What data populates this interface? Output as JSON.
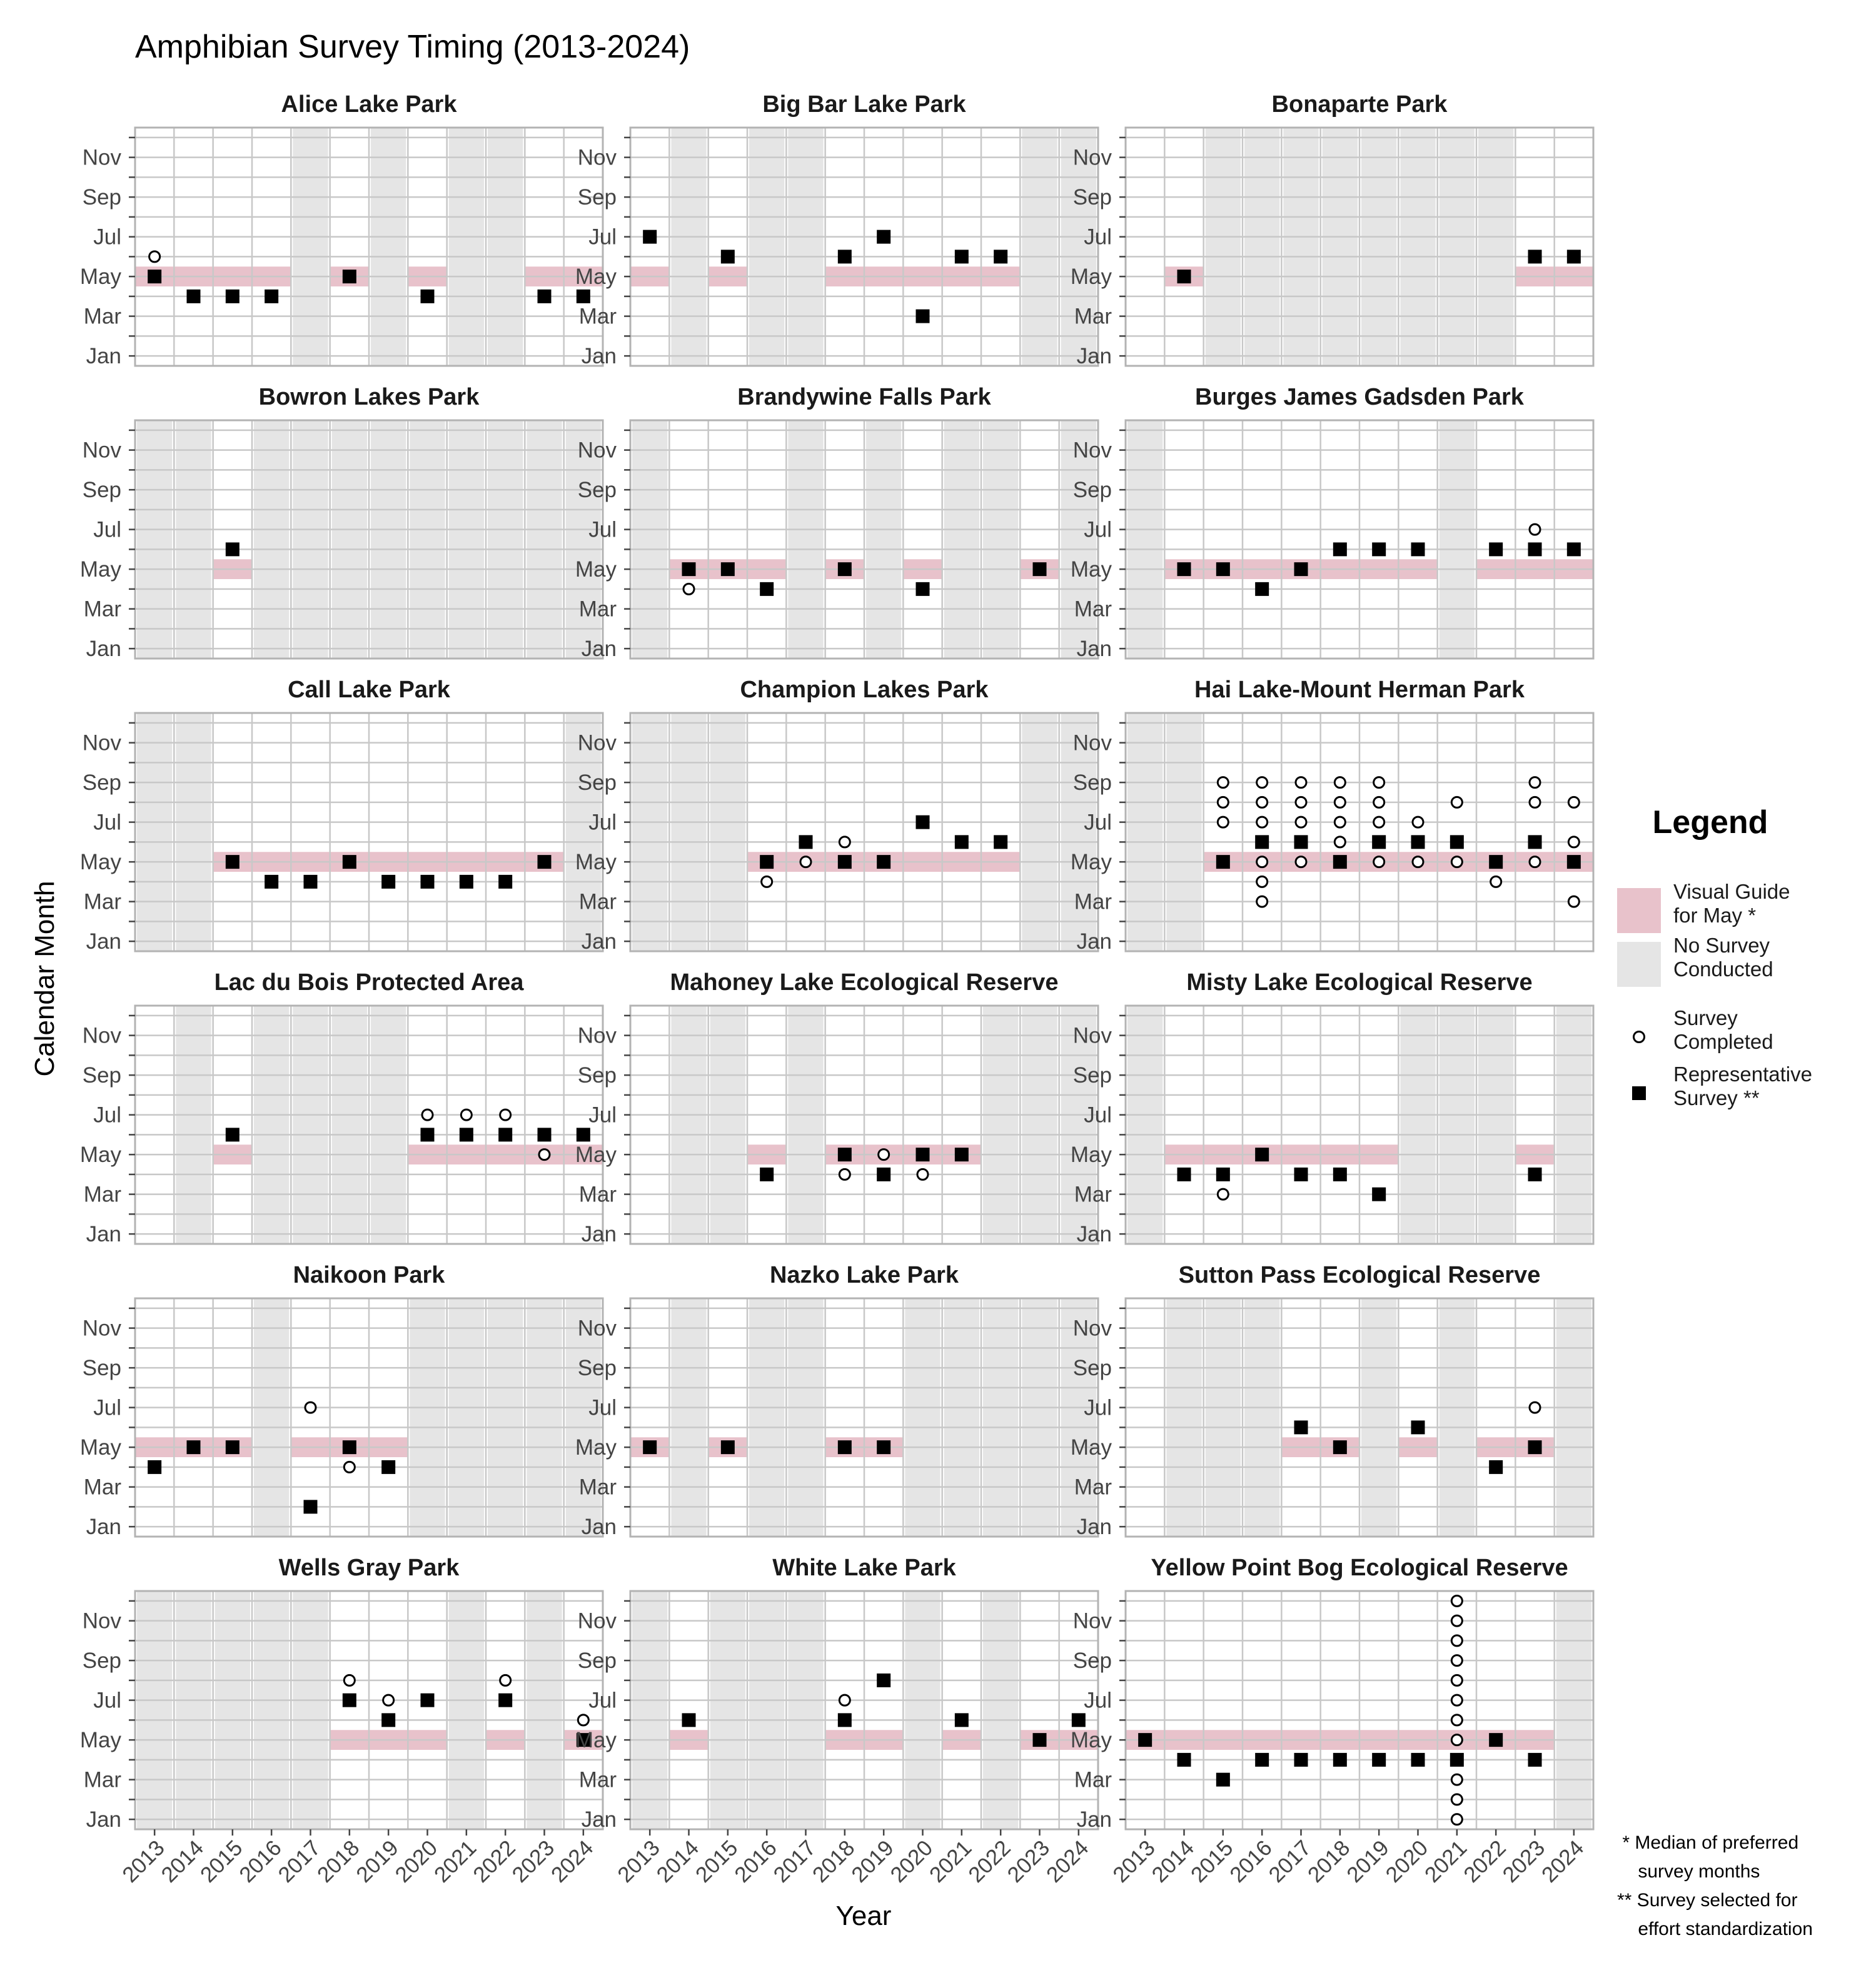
{
  "colors": {
    "may_band": "#e8c2cb",
    "no_survey": "#e5e5e5",
    "grid": "#c8c8c8",
    "panel_border": "#b3b3b3",
    "marker": "#000000"
  },
  "labels": {
    "notes": [
      " * Median of preferred",
      "    survey months",
      "** Survey selected for",
      "    effort standardization"
    ]
  },
  "chart_data": {
    "type": "scatter",
    "title": "Amphibian Survey Timing (2013-2024)",
    "xlabel": "Year",
    "ylabel": "Calendar Month",
    "years": [
      2013,
      2014,
      2015,
      2016,
      2017,
      2018,
      2019,
      2020,
      2021,
      2022,
      2023,
      2024
    ],
    "y_range": [
      1,
      12
    ],
    "month_ticks": [
      "Jan",
      "Mar",
      "May",
      "Jul",
      "Sep",
      "Nov"
    ],
    "grid": true,
    "legend": {
      "title": "Legend",
      "position": "right",
      "items": [
        {
          "key": "band",
          "label": [
            "Visual Guide",
            "for May *"
          ]
        },
        {
          "key": "nosurvey",
          "label": [
            "No Survey",
            "Conducted"
          ]
        },
        {
          "key": "completed",
          "label": [
            "Survey",
            "Completed"
          ]
        },
        {
          "key": "representative",
          "label": [
            "Representative",
            "Survey **"
          ]
        }
      ]
    },
    "panels": [
      {
        "name": "Alice Lake Park",
        "may_band_years": [
          2013,
          2014,
          2015,
          2016,
          2018,
          2020,
          2023,
          2024
        ],
        "no_survey_years": [
          2017,
          2019,
          2021,
          2022
        ],
        "representative": [
          [
            2013,
            5
          ],
          [
            2014,
            4
          ],
          [
            2015,
            4
          ],
          [
            2016,
            4
          ],
          [
            2018,
            5
          ],
          [
            2020,
            4
          ],
          [
            2023,
            4
          ],
          [
            2024,
            4
          ]
        ],
        "completed": [
          [
            2013,
            6
          ]
        ]
      },
      {
        "name": "Big Bar Lake Park",
        "may_band_years": [
          2013,
          2015,
          2018,
          2019,
          2020,
          2021,
          2022
        ],
        "no_survey_years": [
          2014,
          2016,
          2017,
          2023,
          2024
        ],
        "representative": [
          [
            2013,
            7
          ],
          [
            2015,
            6
          ],
          [
            2018,
            6
          ],
          [
            2019,
            7
          ],
          [
            2020,
            3
          ],
          [
            2021,
            6
          ],
          [
            2022,
            6
          ]
        ],
        "completed": []
      },
      {
        "name": "Bonaparte Park",
        "may_band_years": [
          2014,
          2023,
          2024
        ],
        "no_survey_years": [
          2015,
          2016,
          2017,
          2018,
          2019,
          2020,
          2021,
          2022
        ],
        "representative": [
          [
            2014,
            5
          ],
          [
            2023,
            6
          ],
          [
            2024,
            6
          ]
        ],
        "completed": []
      },
      {
        "name": "Bowron Lakes Park",
        "may_band_years": [
          2015
        ],
        "no_survey_years": [
          2013,
          2014,
          2016,
          2017,
          2018,
          2019,
          2020,
          2021,
          2022,
          2023,
          2024
        ],
        "representative": [
          [
            2015,
            6
          ]
        ],
        "completed": []
      },
      {
        "name": "Brandywine Falls Park",
        "may_band_years": [
          2014,
          2015,
          2016,
          2018,
          2020,
          2023
        ],
        "no_survey_years": [
          2013,
          2017,
          2019,
          2021,
          2022,
          2024
        ],
        "representative": [
          [
            2014,
            5
          ],
          [
            2015,
            5
          ],
          [
            2016,
            4
          ],
          [
            2018,
            5
          ],
          [
            2020,
            4
          ],
          [
            2023,
            5
          ]
        ],
        "completed": [
          [
            2014,
            4
          ]
        ]
      },
      {
        "name": "Burges James Gadsden Park",
        "may_band_years": [
          2014,
          2015,
          2016,
          2017,
          2018,
          2019,
          2020,
          2022,
          2023,
          2024
        ],
        "no_survey_years": [
          2013,
          2021
        ],
        "representative": [
          [
            2014,
            5
          ],
          [
            2015,
            5
          ],
          [
            2016,
            4
          ],
          [
            2017,
            5
          ],
          [
            2018,
            6
          ],
          [
            2019,
            6
          ],
          [
            2020,
            6
          ],
          [
            2022,
            6
          ],
          [
            2023,
            6
          ],
          [
            2024,
            6
          ]
        ],
        "completed": [
          [
            2023,
            7
          ]
        ]
      },
      {
        "name": "Call Lake Park",
        "may_band_years": [
          2015,
          2016,
          2017,
          2018,
          2019,
          2020,
          2021,
          2022,
          2023
        ],
        "no_survey_years": [
          2013,
          2014,
          2024
        ],
        "representative": [
          [
            2015,
            5
          ],
          [
            2016,
            4
          ],
          [
            2017,
            4
          ],
          [
            2018,
            5
          ],
          [
            2019,
            4
          ],
          [
            2020,
            4
          ],
          [
            2021,
            4
          ],
          [
            2022,
            4
          ],
          [
            2023,
            5
          ]
        ],
        "completed": []
      },
      {
        "name": "Champion Lakes Park",
        "may_band_years": [
          2016,
          2017,
          2018,
          2019,
          2020,
          2021,
          2022
        ],
        "no_survey_years": [
          2013,
          2014,
          2015,
          2023,
          2024
        ],
        "representative": [
          [
            2016,
            5
          ],
          [
            2017,
            6
          ],
          [
            2018,
            5
          ],
          [
            2019,
            5
          ],
          [
            2020,
            7
          ],
          [
            2021,
            6
          ],
          [
            2022,
            6
          ]
        ],
        "completed": [
          [
            2016,
            4
          ],
          [
            2017,
            5
          ],
          [
            2018,
            6
          ]
        ]
      },
      {
        "name": "Hai Lake-Mount Herman Park",
        "may_band_years": [
          2015,
          2016,
          2017,
          2018,
          2019,
          2020,
          2021,
          2022,
          2023,
          2024
        ],
        "no_survey_years": [
          2013,
          2014
        ],
        "representative": [
          [
            2015,
            5
          ],
          [
            2016,
            6
          ],
          [
            2017,
            6
          ],
          [
            2018,
            5
          ],
          [
            2019,
            6
          ],
          [
            2020,
            6
          ],
          [
            2021,
            6
          ],
          [
            2022,
            5
          ],
          [
            2023,
            6
          ],
          [
            2024,
            5
          ]
        ],
        "completed": [
          [
            2015,
            7
          ],
          [
            2015,
            8
          ],
          [
            2015,
            9
          ],
          [
            2016,
            3
          ],
          [
            2016,
            4
          ],
          [
            2016,
            5
          ],
          [
            2016,
            7
          ],
          [
            2016,
            8
          ],
          [
            2016,
            9
          ],
          [
            2017,
            5
          ],
          [
            2017,
            7
          ],
          [
            2017,
            8
          ],
          [
            2017,
            9
          ],
          [
            2018,
            6
          ],
          [
            2018,
            7
          ],
          [
            2018,
            8
          ],
          [
            2018,
            9
          ],
          [
            2019,
            5
          ],
          [
            2019,
            7
          ],
          [
            2019,
            8
          ],
          [
            2019,
            9
          ],
          [
            2020,
            5
          ],
          [
            2020,
            7
          ],
          [
            2021,
            5
          ],
          [
            2021,
            8
          ],
          [
            2022,
            4
          ],
          [
            2023,
            5
          ],
          [
            2023,
            8
          ],
          [
            2023,
            9
          ],
          [
            2024,
            3
          ],
          [
            2024,
            6
          ],
          [
            2024,
            8
          ]
        ]
      },
      {
        "name": "Lac du Bois Protected Area",
        "may_band_years": [
          2015,
          2020,
          2021,
          2022,
          2023,
          2024
        ],
        "no_survey_years": [
          2014,
          2016,
          2017,
          2018,
          2019
        ],
        "representative": [
          [
            2015,
            6
          ],
          [
            2020,
            6
          ],
          [
            2021,
            6
          ],
          [
            2022,
            6
          ],
          [
            2023,
            6
          ],
          [
            2024,
            6
          ]
        ],
        "completed": [
          [
            2020,
            7
          ],
          [
            2021,
            7
          ],
          [
            2022,
            7
          ],
          [
            2023,
            5
          ]
        ]
      },
      {
        "name": "Mahoney Lake Ecological Reserve",
        "may_band_years": [
          2016,
          2018,
          2019,
          2020,
          2021
        ],
        "no_survey_years": [
          2014,
          2015,
          2017,
          2022,
          2023,
          2024
        ],
        "representative": [
          [
            2016,
            4
          ],
          [
            2018,
            5
          ],
          [
            2019,
            4
          ],
          [
            2020,
            5
          ],
          [
            2021,
            5
          ]
        ],
        "completed": [
          [
            2018,
            4
          ],
          [
            2019,
            5
          ],
          [
            2020,
            4
          ]
        ]
      },
      {
        "name": "Misty Lake Ecological Reserve",
        "may_band_years": [
          2014,
          2015,
          2016,
          2017,
          2018,
          2019,
          2023
        ],
        "no_survey_years": [
          2013,
          2020,
          2021,
          2022,
          2024
        ],
        "representative": [
          [
            2014,
            4
          ],
          [
            2015,
            4
          ],
          [
            2016,
            5
          ],
          [
            2017,
            4
          ],
          [
            2018,
            4
          ],
          [
            2019,
            3
          ],
          [
            2023,
            4
          ]
        ],
        "completed": [
          [
            2015,
            3
          ]
        ]
      },
      {
        "name": "Naikoon Park",
        "may_band_years": [
          2013,
          2014,
          2015,
          2017,
          2018,
          2019
        ],
        "no_survey_years": [
          2016,
          2020,
          2021,
          2022,
          2023,
          2024
        ],
        "representative": [
          [
            2013,
            4
          ],
          [
            2014,
            5
          ],
          [
            2015,
            5
          ],
          [
            2017,
            2
          ],
          [
            2018,
            5
          ],
          [
            2019,
            4
          ]
        ],
        "completed": [
          [
            2017,
            7
          ],
          [
            2018,
            4
          ]
        ]
      },
      {
        "name": "Nazko Lake Park",
        "may_band_years": [
          2013,
          2015,
          2018,
          2019
        ],
        "no_survey_years": [
          2014,
          2016,
          2017,
          2020,
          2021,
          2022,
          2023,
          2024
        ],
        "representative": [
          [
            2013,
            5
          ],
          [
            2015,
            5
          ],
          [
            2018,
            5
          ],
          [
            2019,
            5
          ]
        ],
        "completed": []
      },
      {
        "name": "Sutton Pass Ecological Reserve",
        "may_band_years": [
          2017,
          2018,
          2020,
          2022,
          2023
        ],
        "no_survey_years": [
          2014,
          2015,
          2016,
          2019,
          2021,
          2024
        ],
        "representative": [
          [
            2017,
            6
          ],
          [
            2018,
            5
          ],
          [
            2020,
            6
          ],
          [
            2022,
            4
          ],
          [
            2023,
            5
          ]
        ],
        "completed": [
          [
            2023,
            7
          ]
        ]
      },
      {
        "name": "Wells Gray Park",
        "may_band_years": [
          2018,
          2019,
          2020,
          2022,
          2024
        ],
        "no_survey_years": [
          2013,
          2014,
          2015,
          2016,
          2017,
          2021,
          2023
        ],
        "representative": [
          [
            2018,
            7
          ],
          [
            2019,
            6
          ],
          [
            2020,
            7
          ],
          [
            2022,
            7
          ],
          [
            2024,
            5
          ]
        ],
        "completed": [
          [
            2018,
            8
          ],
          [
            2019,
            7
          ],
          [
            2022,
            8
          ],
          [
            2024,
            6
          ]
        ]
      },
      {
        "name": "White Lake Park",
        "may_band_years": [
          2014,
          2018,
          2019,
          2021,
          2023,
          2024
        ],
        "no_survey_years": [
          2013,
          2015,
          2016,
          2017,
          2020,
          2022
        ],
        "representative": [
          [
            2014,
            6
          ],
          [
            2018,
            6
          ],
          [
            2019,
            8
          ],
          [
            2021,
            6
          ],
          [
            2023,
            5
          ],
          [
            2024,
            6
          ]
        ],
        "completed": [
          [
            2018,
            7
          ]
        ]
      },
      {
        "name": "Yellow Point Bog Ecological Reserve",
        "may_band_years": [
          2013,
          2014,
          2015,
          2016,
          2017,
          2018,
          2019,
          2020,
          2021,
          2022,
          2023
        ],
        "no_survey_years": [
          2024
        ],
        "representative": [
          [
            2013,
            5
          ],
          [
            2014,
            4
          ],
          [
            2015,
            3
          ],
          [
            2016,
            4
          ],
          [
            2017,
            4
          ],
          [
            2018,
            4
          ],
          [
            2019,
            4
          ],
          [
            2020,
            4
          ],
          [
            2021,
            4
          ],
          [
            2022,
            5
          ],
          [
            2023,
            4
          ]
        ],
        "completed": [
          [
            2021,
            1
          ],
          [
            2021,
            2
          ],
          [
            2021,
            3
          ],
          [
            2021,
            5
          ],
          [
            2021,
            6
          ],
          [
            2021,
            7
          ],
          [
            2021,
            8
          ],
          [
            2021,
            9
          ],
          [
            2021,
            10
          ],
          [
            2021,
            11
          ],
          [
            2021,
            12
          ]
        ]
      }
    ]
  }
}
